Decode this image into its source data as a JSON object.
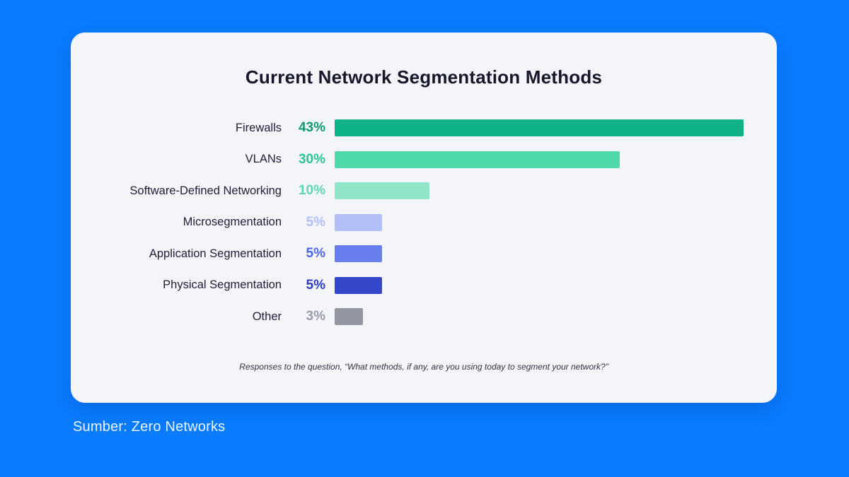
{
  "page": {
    "background_color": "#0a7cff",
    "source_note": "Sumber: Zero Networks",
    "source_note_color": "#eaf5ff"
  },
  "card": {
    "background_color": "#f4f5f9",
    "title": "Current Network Segmentation Methods",
    "caption": "Responses to the question, “What methods, if any, are you using today to segment your network?”"
  },
  "chart_data": {
    "type": "bar",
    "orientation": "horizontal",
    "title": "Current Network Segmentation Methods",
    "categories": [
      "Firewalls",
      "VLANs",
      "Software-Defined Networking",
      "Microsegmentation",
      "Application Segmentation",
      "Physical Segmentation",
      "Other"
    ],
    "values": [
      43,
      30,
      10,
      5,
      5,
      5,
      3
    ],
    "value_labels": [
      "43%",
      "30%",
      "10%",
      "5%",
      "5%",
      "5%",
      "3%"
    ],
    "bar_colors": [
      "#0fb287",
      "#4fd8a9",
      "#8fe5c7",
      "#b3c0f7",
      "#687eee",
      "#3547cb",
      "#9295a0"
    ],
    "value_text_colors": [
      "#0d9b74",
      "#2cc494",
      "#5fd7ac",
      "#b3c0f7",
      "#4d64e8",
      "#2c3cc2",
      "#999cab"
    ],
    "xlim": [
      0,
      43
    ],
    "axis_max_value": 43,
    "grid": false,
    "legend": false,
    "caption": "Responses to the question, “What methods, if any, are you using today to segment your network?”"
  }
}
